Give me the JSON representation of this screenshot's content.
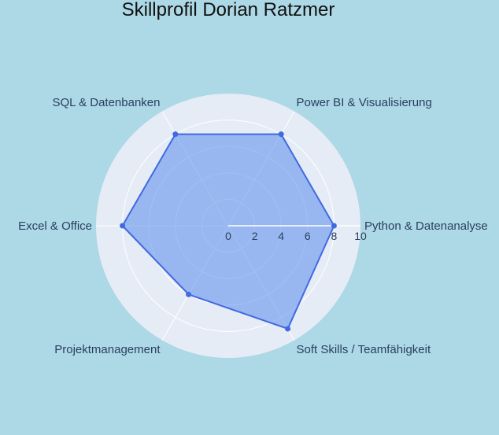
{
  "colors": {
    "background": "#add8e6",
    "polar_bg": "#e5ecf6",
    "grid": "#ffffff",
    "line": "#4169e1",
    "fill": "#6495ed",
    "text": "#2a3f5f",
    "title": "#111111"
  },
  "chart_data": {
    "type": "radar",
    "title": "Skillprofil Dorian Ratzmer",
    "categories": [
      "Python & Datenanalyse",
      "Power BI & Visualisierung",
      "SQL & Datenbanken",
      "Excel & Office",
      "Projektmanagement",
      "Soft Skills / Teamfähigkeit"
    ],
    "values": [
      8,
      8,
      8,
      8,
      6,
      9
    ],
    "radial_range": [
      0,
      10
    ],
    "radial_ticks": [
      "0",
      "2",
      "4",
      "6",
      "8",
      "10"
    ],
    "direction": "counterclockwise",
    "grid": true,
    "legend": false,
    "fill": "toself"
  }
}
